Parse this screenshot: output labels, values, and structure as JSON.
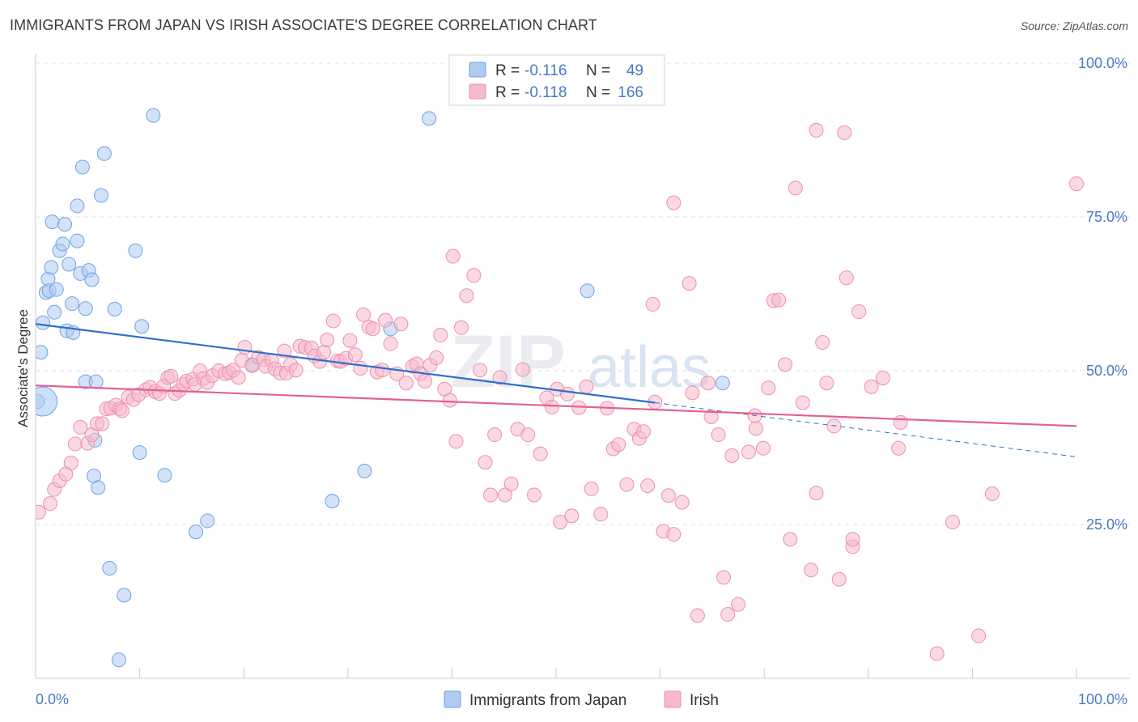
{
  "header": {
    "title": "IMMIGRANTS FROM JAPAN VS IRISH ASSOCIATE'S DEGREE CORRELATION CHART",
    "source": "Source: ZipAtlas.com"
  },
  "watermark": {
    "zip": "ZIP",
    "atlas": "atlas"
  },
  "stats": {
    "rows": [
      {
        "r_label": "R =",
        "r_value": "-0.116",
        "n_label": "N =",
        "n_value": "49",
        "color": "#aecbf1"
      },
      {
        "r_label": "R =",
        "r_value": "-0.118",
        "n_label": "N =",
        "n_value": "166",
        "color": "#f5b9cc"
      }
    ]
  },
  "chart_data": {
    "type": "scatter",
    "title": "IMMIGRANTS FROM JAPAN VS IRISH ASSOCIATE'S DEGREE CORRELATION CHART",
    "xlabel": "",
    "ylabel": "Associate's Degree",
    "xlim": [
      0,
      100
    ],
    "ylim": [
      0,
      100
    ],
    "x_tick_labels": [
      "0.0%",
      "100.0%"
    ],
    "y_ticks": [
      25,
      50,
      75,
      100
    ],
    "y_tick_labels": [
      "25.0%",
      "50.0%",
      "75.0%",
      "100.0%"
    ],
    "grid": true,
    "legend": [
      "Immigrants from Japan",
      "Irish"
    ],
    "series": [
      {
        "name": "Immigrants from Japan",
        "color": "#6fa3e6",
        "fill": "#aecbf1",
        "trend": {
          "x0": 0,
          "y0": 57.6,
          "x1": 59.5,
          "y1": 44.8,
          "dash_to_x": 100,
          "dash_to_y": 36.0,
          "color": "#2f6fd1"
        },
        "points": [
          [
            0.2,
            45.0
          ],
          [
            0.5,
            53.0
          ],
          [
            0.7,
            57.8
          ],
          [
            1.0,
            62.7
          ],
          [
            1.2,
            64.9
          ],
          [
            1.3,
            63.0
          ],
          [
            1.5,
            66.8
          ],
          [
            1.6,
            74.2
          ],
          [
            1.8,
            59.5
          ],
          [
            2.0,
            63.2
          ],
          [
            2.3,
            69.5
          ],
          [
            2.6,
            70.6
          ],
          [
            2.8,
            73.8
          ],
          [
            3.0,
            56.5
          ],
          [
            3.2,
            67.3
          ],
          [
            3.5,
            60.9
          ],
          [
            3.6,
            56.2
          ],
          [
            4.0,
            76.8
          ],
          [
            4.0,
            71.1
          ],
          [
            4.3,
            65.8
          ],
          [
            4.5,
            83.1
          ],
          [
            4.8,
            48.2
          ],
          [
            4.8,
            60.1
          ],
          [
            5.1,
            66.3
          ],
          [
            5.4,
            64.8
          ],
          [
            5.7,
            38.7
          ],
          [
            5.8,
            48.2
          ],
          [
            5.6,
            32.9
          ],
          [
            6.0,
            31.0
          ],
          [
            6.3,
            78.5
          ],
          [
            6.6,
            85.3
          ],
          [
            7.1,
            17.9
          ],
          [
            7.6,
            60.0
          ],
          [
            8.0,
            3.0
          ],
          [
            8.5,
            13.5
          ],
          [
            9.6,
            69.5
          ],
          [
            10.0,
            36.7
          ],
          [
            10.2,
            57.2
          ],
          [
            11.3,
            91.5
          ],
          [
            12.4,
            33.0
          ],
          [
            15.4,
            23.8
          ],
          [
            16.5,
            25.6
          ],
          [
            20.8,
            51.0
          ],
          [
            28.5,
            28.8
          ],
          [
            31.6,
            33.7
          ],
          [
            34.1,
            56.8
          ],
          [
            37.8,
            91.0
          ],
          [
            53.0,
            63.0
          ],
          [
            66.0,
            48.0
          ]
        ]
      },
      {
        "name": "Irish",
        "color": "#ee8fae",
        "fill": "#f5b9cc",
        "trend": {
          "x0": 0,
          "y0": 47.6,
          "x1": 100,
          "y1": 41.0,
          "color": "#e2628e"
        },
        "points": [
          [
            0.3,
            27.0
          ],
          [
            1.4,
            28.4
          ],
          [
            1.8,
            30.7
          ],
          [
            2.3,
            32.1
          ],
          [
            2.9,
            33.2
          ],
          [
            3.4,
            35.0
          ],
          [
            3.8,
            38.1
          ],
          [
            4.3,
            40.8
          ],
          [
            5.0,
            38.2
          ],
          [
            5.4,
            39.6
          ],
          [
            5.9,
            41.4
          ],
          [
            6.4,
            41.4
          ],
          [
            6.8,
            43.8
          ],
          [
            7.2,
            43.9
          ],
          [
            7.7,
            44.4
          ],
          [
            8.1,
            43.8
          ],
          [
            8.3,
            43.5
          ],
          [
            8.9,
            45.7
          ],
          [
            9.4,
            45.3
          ],
          [
            9.9,
            46.1
          ],
          [
            10.6,
            46.9
          ],
          [
            11.0,
            47.3
          ],
          [
            11.5,
            46.6
          ],
          [
            11.9,
            46.3
          ],
          [
            12.3,
            47.5
          ],
          [
            12.7,
            48.9
          ],
          [
            13.0,
            49.1
          ],
          [
            13.4,
            46.3
          ],
          [
            13.8,
            46.8
          ],
          [
            14.2,
            47.8
          ],
          [
            14.5,
            48.3
          ],
          [
            15.1,
            48.6
          ],
          [
            15.3,
            47.8
          ],
          [
            15.8,
            50.0
          ],
          [
            16.1,
            48.7
          ],
          [
            16.5,
            48.1
          ],
          [
            17.0,
            49.2
          ],
          [
            17.6,
            50.0
          ],
          [
            18.2,
            49.5
          ],
          [
            18.6,
            49.7
          ],
          [
            19.0,
            50.1
          ],
          [
            19.5,
            48.9
          ],
          [
            19.8,
            51.7
          ],
          [
            20.1,
            53.8
          ],
          [
            20.8,
            50.8
          ],
          [
            21.4,
            52.2
          ],
          [
            21.9,
            51.8
          ],
          [
            22.1,
            50.7
          ],
          [
            22.7,
            51.7
          ],
          [
            23.0,
            50.3
          ],
          [
            23.5,
            49.6
          ],
          [
            23.9,
            53.2
          ],
          [
            24.1,
            49.6
          ],
          [
            24.5,
            51.0
          ],
          [
            25.0,
            50.1
          ],
          [
            25.4,
            54.0
          ],
          [
            25.9,
            53.8
          ],
          [
            26.5,
            53.7
          ],
          [
            26.8,
            52.4
          ],
          [
            27.3,
            51.5
          ],
          [
            27.7,
            53.0
          ],
          [
            28.0,
            55.0
          ],
          [
            28.6,
            58.1
          ],
          [
            29.0,
            51.6
          ],
          [
            29.3,
            51.5
          ],
          [
            29.8,
            52.0
          ],
          [
            30.2,
            54.9
          ],
          [
            30.7,
            52.6
          ],
          [
            31.2,
            50.4
          ],
          [
            31.5,
            59.1
          ],
          [
            32.0,
            57.1
          ],
          [
            32.4,
            56.8
          ],
          [
            32.8,
            49.8
          ],
          [
            33.3,
            50.1
          ],
          [
            33.6,
            58.2
          ],
          [
            34.1,
            54.4
          ],
          [
            34.7,
            49.5
          ],
          [
            35.1,
            57.6
          ],
          [
            35.6,
            48.0
          ],
          [
            36.2,
            50.7
          ],
          [
            36.6,
            51.1
          ],
          [
            37.0,
            49.5
          ],
          [
            37.4,
            48.3
          ],
          [
            37.9,
            50.9
          ],
          [
            38.5,
            52.1
          ],
          [
            38.9,
            55.8
          ],
          [
            39.3,
            47.0
          ],
          [
            39.8,
            45.2
          ],
          [
            40.1,
            68.6
          ],
          [
            40.4,
            38.5
          ],
          [
            40.9,
            57.0
          ],
          [
            41.4,
            62.2
          ],
          [
            42.1,
            65.5
          ],
          [
            42.7,
            50.1
          ],
          [
            43.2,
            35.1
          ],
          [
            43.7,
            29.8
          ],
          [
            44.1,
            39.6
          ],
          [
            44.6,
            48.9
          ],
          [
            45.1,
            29.8
          ],
          [
            45.7,
            31.6
          ],
          [
            46.3,
            40.5
          ],
          [
            46.8,
            50.2
          ],
          [
            47.3,
            39.6
          ],
          [
            47.9,
            29.8
          ],
          [
            48.5,
            36.5
          ],
          [
            49.1,
            45.6
          ],
          [
            49.6,
            44.1
          ],
          [
            50.1,
            47.0
          ],
          [
            50.4,
            25.4
          ],
          [
            51.1,
            46.2
          ],
          [
            51.5,
            26.4
          ],
          [
            52.2,
            44.0
          ],
          [
            52.9,
            47.4
          ],
          [
            53.4,
            30.8
          ],
          [
            54.3,
            26.7
          ],
          [
            54.9,
            43.9
          ],
          [
            55.5,
            37.3
          ],
          [
            56.0,
            38.0
          ],
          [
            56.8,
            31.5
          ],
          [
            57.5,
            40.5
          ],
          [
            58.0,
            39.0
          ],
          [
            58.4,
            40.1
          ],
          [
            58.8,
            31.3
          ],
          [
            59.5,
            44.9
          ],
          [
            60.3,
            23.9
          ],
          [
            60.8,
            29.7
          ],
          [
            61.3,
            23.4
          ],
          [
            62.1,
            28.6
          ],
          [
            62.8,
            64.2
          ],
          [
            63.1,
            46.4
          ],
          [
            63.6,
            10.2
          ],
          [
            64.6,
            48.0
          ],
          [
            65.6,
            39.6
          ],
          [
            66.1,
            16.4
          ],
          [
            66.5,
            10.4
          ],
          [
            66.9,
            36.2
          ],
          [
            67.5,
            12.0
          ],
          [
            68.5,
            36.8
          ],
          [
            69.2,
            40.6
          ],
          [
            69.9,
            37.4
          ],
          [
            70.4,
            47.2
          ],
          [
            70.9,
            61.4
          ],
          [
            71.4,
            61.5
          ],
          [
            72.0,
            51.0
          ],
          [
            72.5,
            22.6
          ],
          [
            73.0,
            79.7
          ],
          [
            73.7,
            44.8
          ],
          [
            74.5,
            17.6
          ],
          [
            75.0,
            30.1
          ],
          [
            75.6,
            54.6
          ],
          [
            76.0,
            48.0
          ],
          [
            76.7,
            41.0
          ],
          [
            77.2,
            16.1
          ],
          [
            77.9,
            65.1
          ],
          [
            78.5,
            21.4
          ],
          [
            79.1,
            59.6
          ],
          [
            80.3,
            47.4
          ],
          [
            81.4,
            48.8
          ],
          [
            82.9,
            37.4
          ],
          [
            83.1,
            41.6
          ],
          [
            88.1,
            25.4
          ],
          [
            90.6,
            6.9
          ],
          [
            91.9,
            30.0
          ],
          [
            100.0,
            80.4
          ],
          [
            75.0,
            89.1
          ],
          [
            77.7,
            88.7
          ],
          [
            61.3,
            77.3
          ],
          [
            59.3,
            60.8
          ],
          [
            64.9,
            42.5
          ],
          [
            69.1,
            42.7
          ],
          [
            78.5,
            22.6
          ],
          [
            86.6,
            4.0
          ]
        ]
      }
    ]
  }
}
